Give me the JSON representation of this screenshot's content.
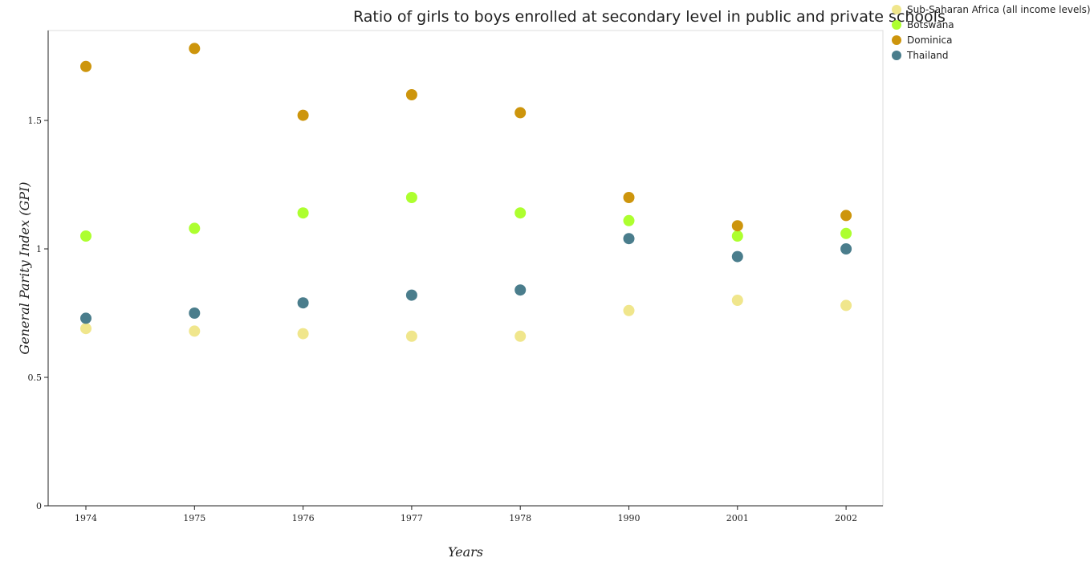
{
  "chart_data": {
    "type": "scatter",
    "title": "Ratio of girls to boys enrolled at secondary level in public and private schools",
    "xlabel": "Years",
    "ylabel": "General Parity Index (GPI)",
    "categories": [
      "1974",
      "1975",
      "1976",
      "1977",
      "1978",
      "1990",
      "2001",
      "2002"
    ],
    "ylim": [
      0,
      1.85
    ],
    "yticks": [
      "0",
      "0.5",
      "1",
      "1.5"
    ],
    "ytick_values": [
      0,
      0.5,
      1,
      1.5
    ],
    "legend_position": "top-right",
    "grid": false,
    "series": [
      {
        "name": "Sub-Saharan Africa (all income levels)",
        "color": "#f0e68c",
        "values": [
          0.69,
          0.68,
          0.67,
          0.66,
          0.66,
          0.76,
          0.8,
          0.78
        ]
      },
      {
        "name": "Botswana",
        "color": "#adff2f",
        "values": [
          1.05,
          1.08,
          1.14,
          1.2,
          1.14,
          1.11,
          1.05,
          1.06
        ]
      },
      {
        "name": "Dominica",
        "color": "#cd950c",
        "values": [
          1.71,
          1.78,
          1.52,
          1.6,
          1.53,
          1.2,
          1.09,
          1.13
        ]
      },
      {
        "name": "Thailand",
        "color": "#4a7d8c",
        "values": [
          0.73,
          0.75,
          0.79,
          0.82,
          0.84,
          1.04,
          0.97,
          1.0
        ]
      }
    ]
  }
}
